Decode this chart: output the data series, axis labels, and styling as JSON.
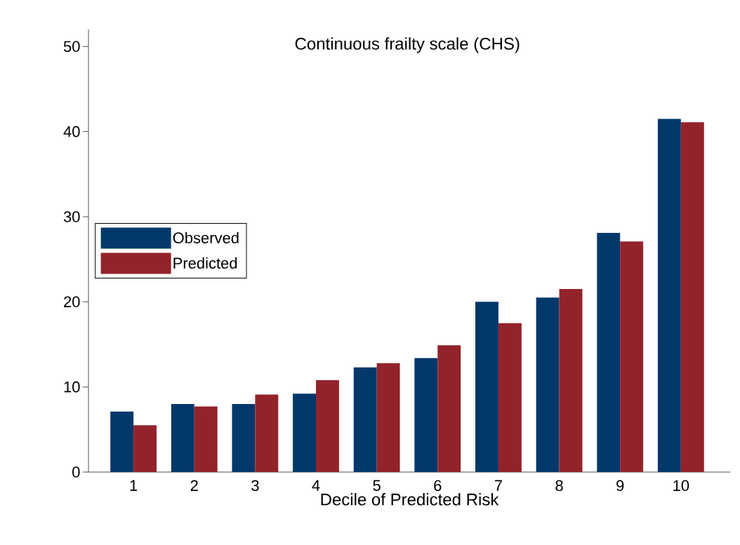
{
  "chart_data": {
    "type": "bar",
    "title": "Continuous frailty scale (CHS)",
    "xlabel": "Decile of Predicted Risk",
    "categories": [
      "1",
      "2",
      "3",
      "4",
      "5",
      "6",
      "7",
      "8",
      "9",
      "10"
    ],
    "series": [
      {
        "name": "Observed",
        "color": "#03386a",
        "values": [
          7.1,
          8.0,
          8.0,
          9.2,
          12.3,
          13.4,
          20.0,
          20.5,
          28.1,
          41.5
        ]
      },
      {
        "name": "Predicted",
        "color": "#93232b",
        "values": [
          5.5,
          7.7,
          9.1,
          10.8,
          12.8,
          14.9,
          17.5,
          21.5,
          27.1,
          41.1
        ]
      }
    ],
    "ylim": [
      0,
      52
    ],
    "yticks": [
      0,
      10,
      20,
      30,
      40,
      50
    ],
    "grid": false,
    "legend": "left"
  }
}
